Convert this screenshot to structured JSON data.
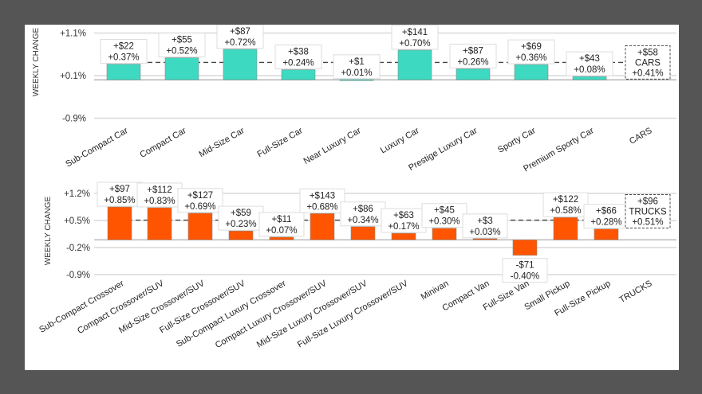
{
  "chart_data": [
    {
      "type": "bar",
      "title": "",
      "xlabel": "",
      "ylabel": "WEEKLY CHANGE",
      "yticks": [
        "+1.1%",
        "+0.1%",
        "-0.9%"
      ],
      "ytick_values": [
        1.1,
        0.1,
        -0.9
      ],
      "ylim": [
        -0.9,
        1.1
      ],
      "bar_color": "#3dd9c1",
      "categories": [
        "Sub-Compact Car",
        "Compact Car",
        "Mid-Size Car",
        "Full-Size Car",
        "Near Luxury Car",
        "Luxury Car",
        "Prestige Luxury Car",
        "Sporty Car",
        "Premium Sporty Car",
        "CARS"
      ],
      "values": [
        0.37,
        0.52,
        0.72,
        0.24,
        0.01,
        0.7,
        0.26,
        0.36,
        0.08
      ],
      "dollar_labels": [
        "+$22",
        "+$55",
        "+$87",
        "+$38",
        "+$1",
        "+$141",
        "+$87",
        "+$69",
        "+$43"
      ],
      "pct_labels": [
        "+0.37%",
        "+0.52%",
        "+0.72%",
        "+0.24%",
        "+0.01%",
        "+0.70%",
        "+0.26%",
        "+0.36%",
        "+0.08%"
      ],
      "summary": {
        "name": "CARS",
        "dollar": "+$58",
        "pct": "+0.41%",
        "value": 0.41
      }
    },
    {
      "type": "bar",
      "title": "",
      "xlabel": "",
      "ylabel": "WEEKLY CHANGE",
      "yticks": [
        "+1.2%",
        "+0.5%",
        "-0.2%",
        "-0.9%"
      ],
      "ytick_values": [
        1.2,
        0.5,
        -0.2,
        -0.9
      ],
      "ylim": [
        -0.9,
        1.2
      ],
      "bar_color": "#ff5500",
      "categories": [
        "Sub-Compact Crossover",
        "Compact Crossover/SUV",
        "Mid-Size Crossover/SUV",
        "Full-Size Crossover/SUV",
        "Sub-Compact Luxury Crossover",
        "Compact Luxury Crossover/SUV",
        "Mid-Size Luxury Crossover/SUV",
        "Full-Size Luxury Crossover/SUV",
        "Minivan",
        "Compact Van",
        "Full-Size Van",
        "Small Pickup",
        "Full-Size Pickup",
        "TRUCKS"
      ],
      "values": [
        0.85,
        0.83,
        0.69,
        0.23,
        0.07,
        0.68,
        0.34,
        0.17,
        0.3,
        0.03,
        -0.4,
        0.58,
        0.28
      ],
      "dollar_labels": [
        "+$97",
        "+$112",
        "+$127",
        "+$59",
        "+$11",
        "+$143",
        "+$86",
        "+$63",
        "+$45",
        "+$3",
        "-$71",
        "+$122",
        "+$66"
      ],
      "pct_labels": [
        "+0.85%",
        "+0.83%",
        "+0.69%",
        "+0.23%",
        "+0.07%",
        "+0.68%",
        "+0.34%",
        "+0.17%",
        "+0.30%",
        "+0.03%",
        "-0.40%",
        "+0.58%",
        "+0.28%"
      ],
      "summary": {
        "name": "TRUCKS",
        "dollar": "+$96",
        "pct": "+0.51%",
        "value": 0.51
      }
    }
  ]
}
